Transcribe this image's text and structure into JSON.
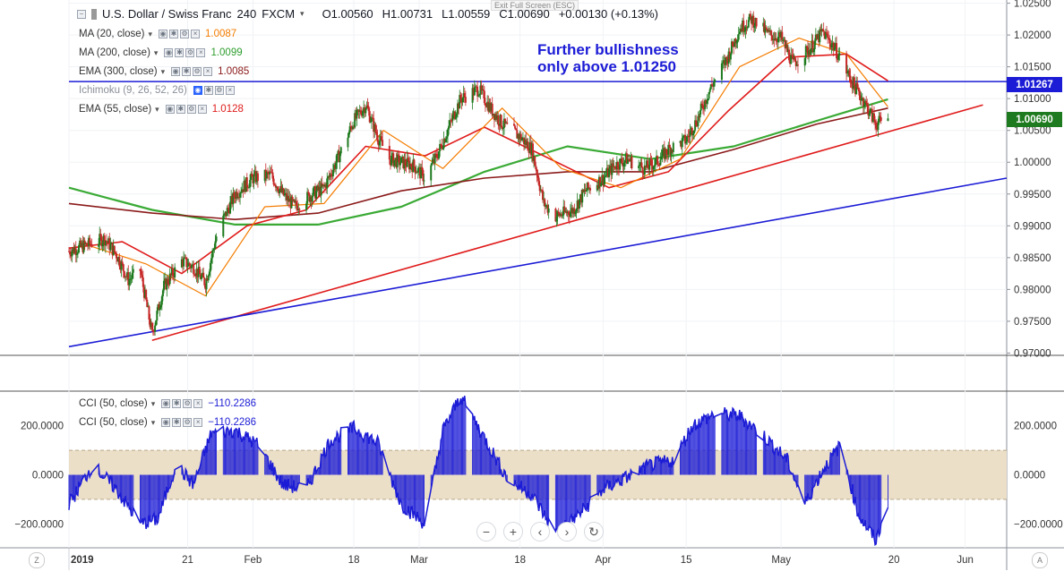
{
  "header": {
    "exit_fullscreen": "Exit Full Screen (ESC)",
    "symbol": "U.S. Dollar / Swiss Franc",
    "interval": "240",
    "exchange": "FXCM",
    "open": "O1.00560",
    "high": "H1.00731",
    "low": "L1.00559",
    "close": "C1.00690",
    "change": "+0.00130 (+0.13%)"
  },
  "legend": [
    {
      "label": "MA (20, close)",
      "value": "1.0087",
      "color": "#f57c00"
    },
    {
      "label": "MA (200, close)",
      "value": "1.0099",
      "color": "#2e9e2e"
    },
    {
      "label": "EMA (300, close)",
      "value": "1.0085",
      "color": "#8b1a1a"
    },
    {
      "label": "Ichimoku (9, 26, 52, 26)",
      "value": "",
      "color": "#333333"
    },
    {
      "label": "EMA (55, close)",
      "value": "1.0128",
      "color": "#e01b1b"
    }
  ],
  "cci_legend": [
    {
      "label": "CCI (50, close)",
      "value": "−110.2286"
    },
    {
      "label": "CCI (50, close)",
      "value": "−110.2286"
    }
  ],
  "annotation": {
    "line1": "Further bullishness",
    "line2": "only above 1.01250"
  },
  "price_tags": {
    "level": "1.01267",
    "level_color": "#1c1cd6",
    "last": "1.00690",
    "last_color": "#1e7a1e"
  },
  "nav": {
    "zoom_out": "−",
    "zoom_in": "+",
    "prev": "‹",
    "next": "›",
    "reset": "↻"
  },
  "corners": {
    "left": "Z",
    "right": "A"
  },
  "colors": {
    "candle_up": "#1e7a1e",
    "candle_down": "#c62828",
    "ma20": "#f57c00",
    "ma200": "#3aaa35",
    "ema300": "#8b1a1a",
    "ema55": "#e01b1b",
    "trend_red": "#e01b1b",
    "trend_blue": "#1c1cd6",
    "cci": "#1c1cd6",
    "cci_band": "#ecdfc8"
  },
  "chart_data": [
    {
      "type": "candlestick",
      "title": "U.S. Dollar / Swiss Franc 240 FXCM",
      "y_ticks": [
        "1.02500",
        "1.02000",
        "1.01500",
        "1.01000",
        "1.00500",
        "1.00000",
        "0.99500",
        "0.99000",
        "0.98500",
        "0.98000",
        "0.97500",
        "0.97000"
      ],
      "x_ticks": [
        "2019",
        "21",
        "Feb",
        "18",
        "Mar",
        "18",
        "Apr",
        "15",
        "May",
        "20",
        "Jun"
      ],
      "ylim": [
        0.9695,
        1.0255
      ],
      "x_range_days": [
        "2019-01-01",
        "2019-06-08"
      ],
      "price_path": [
        [
          "2019-01-01",
          0.986
        ],
        [
          "2019-01-04",
          0.987
        ],
        [
          "2019-01-07",
          0.988
        ],
        [
          "2019-01-09",
          0.9855
        ],
        [
          "2019-01-11",
          0.9815
        ],
        [
          "2019-01-13",
          0.983
        ],
        [
          "2019-01-15",
          0.973
        ],
        [
          "2019-01-17",
          0.9805
        ],
        [
          "2019-01-20",
          0.9845
        ],
        [
          "2019-01-22",
          0.9835
        ],
        [
          "2019-01-24",
          0.981
        ],
        [
          "2019-01-26",
          0.989
        ],
        [
          "2019-01-29",
          0.995
        ],
        [
          "2019-02-01",
          0.9975
        ],
        [
          "2019-02-04",
          0.998
        ],
        [
          "2019-02-06",
          0.995
        ],
        [
          "2019-02-08",
          0.993
        ],
        [
          "2019-02-11",
          0.995
        ],
        [
          "2019-02-13",
          0.996
        ],
        [
          "2019-02-15",
          1.0
        ],
        [
          "2019-02-18",
          1.0065
        ],
        [
          "2019-02-20",
          1.009
        ],
        [
          "2019-02-22",
          1.004
        ],
        [
          "2019-02-24",
          1.0005
        ],
        [
          "2019-02-26",
          1.0
        ],
        [
          "2019-02-28",
          0.9995
        ],
        [
          "2019-03-02",
          0.9975
        ],
        [
          "2019-03-04",
          1.001
        ],
        [
          "2019-03-06",
          1.0055
        ],
        [
          "2019-03-08",
          1.01
        ],
        [
          "2019-03-11",
          1.0115
        ],
        [
          "2019-03-13",
          1.0085
        ],
        [
          "2019-03-15",
          1.006
        ],
        [
          "2019-03-18",
          1.004
        ],
        [
          "2019-03-20",
          1.002
        ],
        [
          "2019-03-22",
          0.9935
        ],
        [
          "2019-03-24",
          0.9915
        ],
        [
          "2019-03-27",
          0.9925
        ],
        [
          "2019-03-29",
          0.9955
        ],
        [
          "2019-04-01",
          0.9975
        ],
        [
          "2019-04-03",
          0.9995
        ],
        [
          "2019-04-05",
          1.0005
        ],
        [
          "2019-04-08",
          0.999
        ],
        [
          "2019-04-10",
          1.0
        ],
        [
          "2019-04-12",
          1.002
        ],
        [
          "2019-04-15",
          1.0035
        ],
        [
          "2019-04-17",
          1.007
        ],
        [
          "2019-04-19",
          1.0115
        ],
        [
          "2019-04-22",
          1.0165
        ],
        [
          "2019-04-24",
          1.021
        ],
        [
          "2019-04-26",
          1.0225
        ],
        [
          "2019-04-29",
          1.02
        ],
        [
          "2019-05-01",
          1.0195
        ],
        [
          "2019-05-03",
          1.0155
        ],
        [
          "2019-05-06",
          1.018
        ],
        [
          "2019-05-08",
          1.0205
        ],
        [
          "2019-05-10",
          1.018
        ],
        [
          "2019-05-13",
          1.0125
        ],
        [
          "2019-05-15",
          1.0095
        ],
        [
          "2019-05-17",
          1.006
        ],
        [
          "2019-05-19",
          1.0069
        ]
      ],
      "ma20": [
        [
          "2019-01-04",
          0.987
        ],
        [
          "2019-01-14",
          0.984
        ],
        [
          "2019-01-24",
          0.979
        ],
        [
          "2019-02-03",
          0.993
        ],
        [
          "2019-02-13",
          0.9935
        ],
        [
          "2019-02-23",
          1.005
        ],
        [
          "2019-03-05",
          0.999
        ],
        [
          "2019-03-15",
          1.0085
        ],
        [
          "2019-03-25",
          0.999
        ],
        [
          "2019-04-04",
          0.996
        ],
        [
          "2019-04-14",
          1.0005
        ],
        [
          "2019-04-24",
          1.015
        ],
        [
          "2019-05-04",
          1.0195
        ],
        [
          "2019-05-12",
          1.017
        ],
        [
          "2019-05-19",
          1.0087
        ]
      ],
      "ma200": [
        [
          "2019-01-01",
          0.996
        ],
        [
          "2019-01-15",
          0.9925
        ],
        [
          "2019-01-29",
          0.9902
        ],
        [
          "2019-02-12",
          0.9902
        ],
        [
          "2019-02-26",
          0.993
        ],
        [
          "2019-03-12",
          0.9985
        ],
        [
          "2019-03-26",
          1.0025
        ],
        [
          "2019-04-09",
          1.0005
        ],
        [
          "2019-04-23",
          1.0025
        ],
        [
          "2019-05-07",
          1.0065
        ],
        [
          "2019-05-19",
          1.0099
        ]
      ],
      "ema300": [
        [
          "2019-01-01",
          0.9935
        ],
        [
          "2019-01-15",
          0.992
        ],
        [
          "2019-01-29",
          0.991
        ],
        [
          "2019-02-12",
          0.992
        ],
        [
          "2019-02-26",
          0.9955
        ],
        [
          "2019-03-12",
          0.9975
        ],
        [
          "2019-03-26",
          0.9985
        ],
        [
          "2019-04-09",
          0.9985
        ],
        [
          "2019-04-23",
          1.002
        ],
        [
          "2019-05-07",
          1.006
        ],
        [
          "2019-05-19",
          1.0085
        ]
      ],
      "ema55": [
        [
          "2019-01-01",
          0.9865
        ],
        [
          "2019-01-10",
          0.9875
        ],
        [
          "2019-01-20",
          0.9825
        ],
        [
          "2019-01-31",
          0.99
        ],
        [
          "2019-02-10",
          0.9925
        ],
        [
          "2019-02-20",
          1.0025
        ],
        [
          "2019-03-02",
          1.001
        ],
        [
          "2019-03-12",
          1.0055
        ],
        [
          "2019-03-22",
          1.001
        ],
        [
          "2019-04-02",
          0.996
        ],
        [
          "2019-04-12",
          0.9985
        ],
        [
          "2019-04-22",
          1.008
        ],
        [
          "2019-05-02",
          1.0165
        ],
        [
          "2019-05-12",
          1.017
        ],
        [
          "2019-05-19",
          1.0128
        ]
      ],
      "horizontal_level": 1.01267,
      "trendlines": [
        {
          "color": "red",
          "from": [
            "2019-01-15",
            0.972
          ],
          "to": [
            "2019-06-04",
            1.009
          ]
        },
        {
          "color": "blue",
          "from": [
            "2019-01-01",
            0.971
          ],
          "to": [
            "2019-06-08",
            0.9975
          ]
        }
      ]
    },
    {
      "type": "bar",
      "title": "CCI (50, close)",
      "y_ticks": [
        "200.0000",
        "0.0000",
        "−200.0000"
      ],
      "ylim": [
        -290,
        330
      ],
      "band": [
        -100,
        100
      ],
      "cci_path": [
        [
          "2019-01-01",
          -120
        ],
        [
          "2019-01-05",
          40
        ],
        [
          "2019-01-09",
          -60
        ],
        [
          "2019-01-13",
          -200
        ],
        [
          "2019-01-16",
          -180
        ],
        [
          "2019-01-19",
          40
        ],
        [
          "2019-01-22",
          -40
        ],
        [
          "2019-01-25",
          170
        ],
        [
          "2019-01-29",
          180
        ],
        [
          "2019-02-02",
          120
        ],
        [
          "2019-02-06",
          -40
        ],
        [
          "2019-02-10",
          -60
        ],
        [
          "2019-02-14",
          140
        ],
        [
          "2019-02-18",
          190
        ],
        [
          "2019-02-22",
          130
        ],
        [
          "2019-02-26",
          -120
        ],
        [
          "2019-03-02",
          -200
        ],
        [
          "2019-03-05",
          180
        ],
        [
          "2019-03-08",
          320
        ],
        [
          "2019-03-12",
          150
        ],
        [
          "2019-03-16",
          -20
        ],
        [
          "2019-03-20",
          -80
        ],
        [
          "2019-03-24",
          -240
        ],
        [
          "2019-03-28",
          -160
        ],
        [
          "2019-04-01",
          -60
        ],
        [
          "2019-04-05",
          -10
        ],
        [
          "2019-04-09",
          40
        ],
        [
          "2019-04-13",
          60
        ],
        [
          "2019-04-16",
          200
        ],
        [
          "2019-04-20",
          250
        ],
        [
          "2019-04-24",
          240
        ],
        [
          "2019-04-28",
          160
        ],
        [
          "2019-05-02",
          60
        ],
        [
          "2019-05-05",
          -120
        ],
        [
          "2019-05-08",
          20
        ],
        [
          "2019-05-11",
          120
        ],
        [
          "2019-05-14",
          -160
        ],
        [
          "2019-05-17",
          -270
        ],
        [
          "2019-05-19",
          -110
        ]
      ]
    }
  ]
}
